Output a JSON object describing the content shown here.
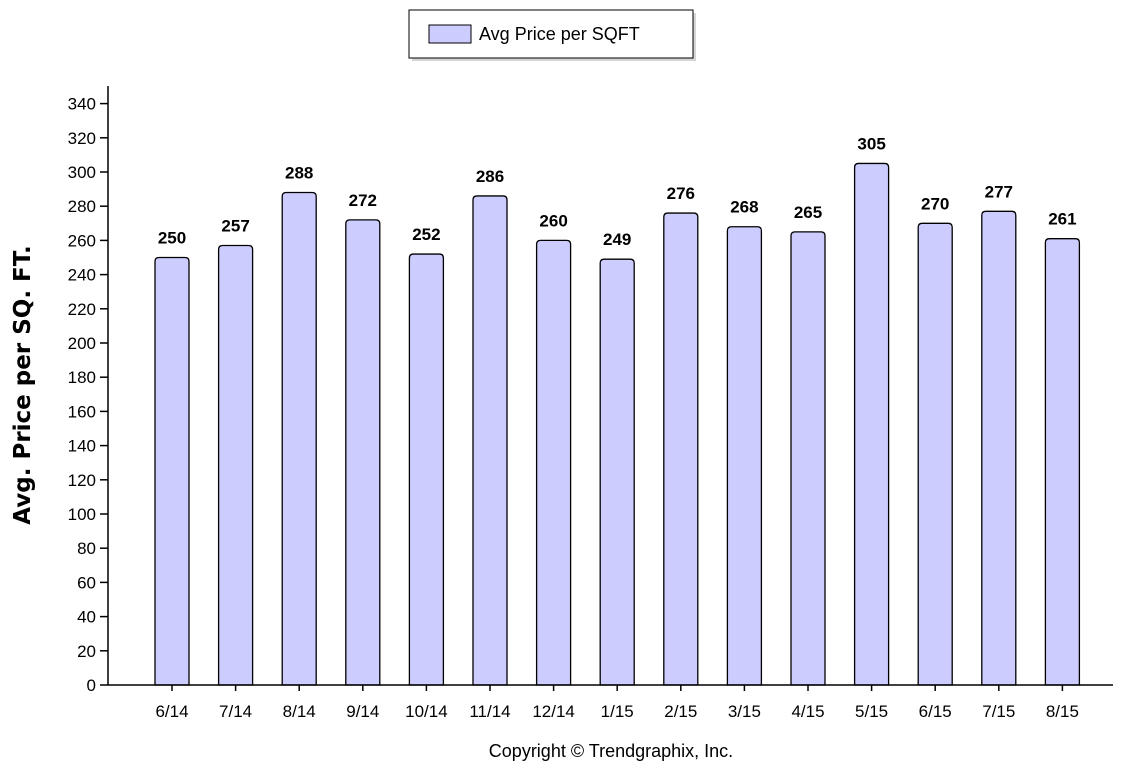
{
  "chart_data": {
    "type": "bar",
    "categories": [
      "6/14",
      "7/14",
      "8/14",
      "9/14",
      "10/14",
      "11/14",
      "12/14",
      "1/15",
      "2/15",
      "3/15",
      "4/15",
      "5/15",
      "6/15",
      "7/15",
      "8/15"
    ],
    "series": [
      {
        "name": "Avg Price per SQFT",
        "values": [
          250,
          257,
          288,
          272,
          252,
          286,
          260,
          249,
          276,
          268,
          265,
          305,
          270,
          277,
          261
        ]
      }
    ],
    "data_labels": [
      "250",
      "257",
      "288",
      "272",
      "252",
      "286",
      "260",
      "249",
      "276",
      "268",
      "265",
      "305",
      "270",
      "277",
      "261"
    ],
    "yticks": [
      "0",
      "20",
      "40",
      "60",
      "80",
      "100",
      "120",
      "140",
      "160",
      "180",
      "200",
      "220",
      "240",
      "260",
      "280",
      "300",
      "320",
      "340"
    ],
    "ylabel": "Avg. Price per SQ. FT.",
    "xlabel": "",
    "ylim": [
      0,
      345
    ],
    "legend_position": "top-center",
    "grid": false,
    "bar_color": "#ccccff",
    "bar_stroke": "#000000"
  },
  "footer": {
    "copyright": "Copyright © Trendgraphix, Inc."
  }
}
